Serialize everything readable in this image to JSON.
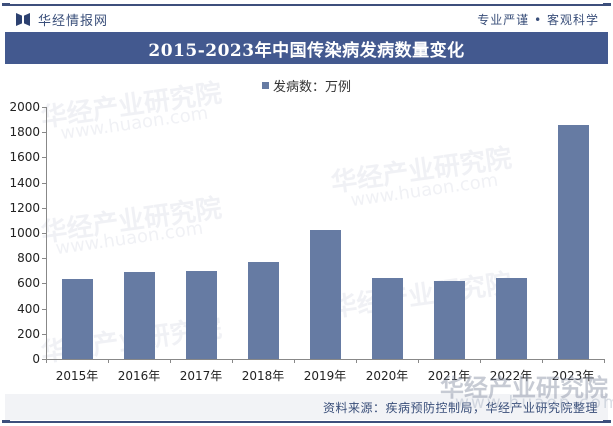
{
  "header": {
    "brand_name": "华经情报网",
    "slogan": "专业严谨 • 客观科学"
  },
  "title": "2015-2023年中国传染病发病数量变化",
  "legend": {
    "label": "发病数：万例",
    "color": "#667ba3"
  },
  "source": "资料来源：疾病预防控制局，华经产业研究院整理",
  "watermark": {
    "name": "华经产业研究院",
    "url": "www.huaon.com"
  },
  "colors": {
    "title_bar": "#43598f",
    "bar": "#667ba3",
    "brand": "#3a4f7a"
  },
  "chart_data": {
    "type": "bar",
    "title": "2015-2023年中国传染病发病数量变化",
    "xlabel": "",
    "ylabel": "",
    "categories": [
      "2015年",
      "2016年",
      "2017年",
      "2018年",
      "2019年",
      "2020年",
      "2021年",
      "2022年",
      "2023年"
    ],
    "series": [
      {
        "name": "发病数：万例",
        "values": [
          635,
          690,
          698,
          770,
          1020,
          643,
          619,
          643,
          1857
        ]
      }
    ],
    "yticks": [
      "0",
      "200",
      "400",
      "600",
      "800",
      "1000",
      "1200",
      "1400",
      "1600",
      "1800",
      "2000"
    ],
    "ylim": [
      0,
      2000
    ],
    "grid": false,
    "legend_position": "top"
  }
}
